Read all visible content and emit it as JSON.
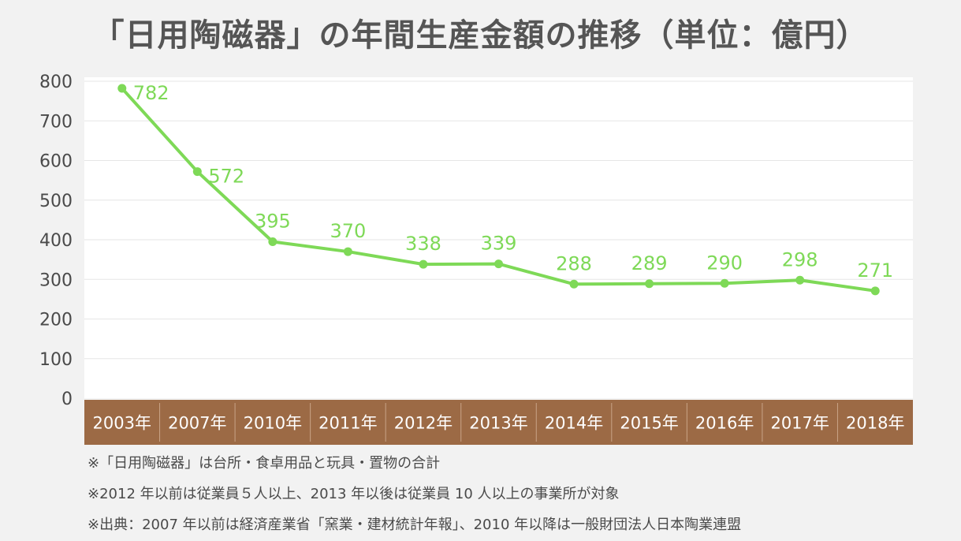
{
  "chart_data": {
    "type": "line",
    "title": "「日用陶磁器」の年間生産金額の推移（単位：億円）",
    "categories": [
      "2003年",
      "2007年",
      "2010年",
      "2011年",
      "2012年",
      "2013年",
      "2014年",
      "2015年",
      "2016年",
      "2017年",
      "2018年"
    ],
    "series": [
      {
        "values": [
          782,
          572,
          395,
          370,
          338,
          339,
          288,
          289,
          290,
          298,
          271
        ]
      }
    ],
    "data_labels": [
      "782",
      "572",
      "395",
      "370",
      "338",
      "339",
      "288",
      "289",
      "290",
      "298",
      "271"
    ],
    "y_ticks": [
      "0",
      "100",
      "200",
      "300",
      "400",
      "500",
      "600",
      "700",
      "800"
    ],
    "ylim": [
      0,
      800
    ],
    "grid": true,
    "colors": {
      "line": "#7ed957",
      "label": "#7ed957",
      "category_band": "#9c6a45",
      "category_text": "#ffffff",
      "plot_background": "#ffffff"
    }
  },
  "notes": [
    "※「日用陶磁器」は台所・食卓用品と玩具・置物の合計",
    "※2012 年以前は従業員５人以上、2013 年以後は従業員 10 人以上の事業所が対象",
    "※出典：2007 年以前は経済産業省「窯業・建材統計年報」、2010 年以降は一般財団法人日本陶業連盟"
  ]
}
